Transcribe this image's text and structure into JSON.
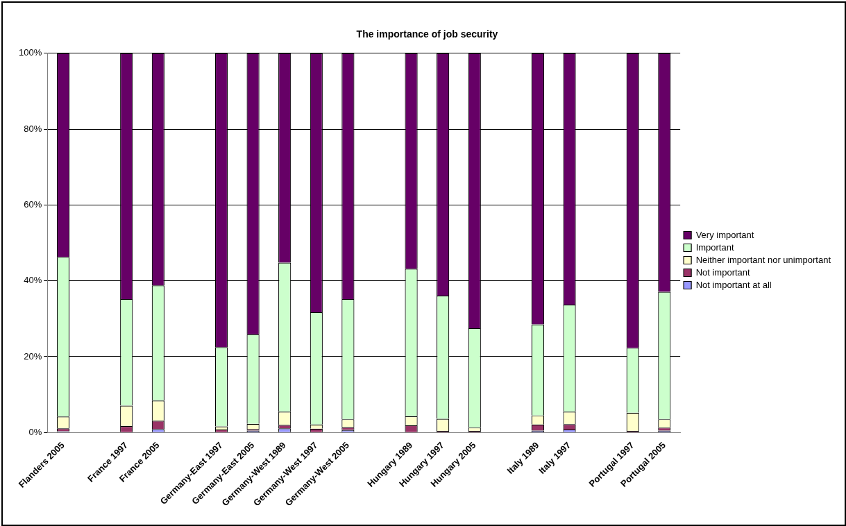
{
  "chart_data": {
    "type": "bar",
    "title": "The importance of job security",
    "stacked": true,
    "categories": [
      "Flanders 2005",
      null,
      "France 1997",
      "France 2005",
      null,
      "Germany-East 1997",
      "Germany-East 2005",
      "Germany-West 1989",
      "Germany-West 1997",
      "Germany-West 2005",
      null,
      "Hungary 1989",
      "Hungary 1997",
      "Hungary 2005",
      null,
      "Italy 1989",
      "Italy 1997",
      null,
      "Portugal 1997",
      "Portugal 2005"
    ],
    "series": [
      {
        "name": "Not important at all",
        "color": "#9999ff",
        "values": [
          0.3,
          null,
          0,
          0.9,
          null,
          0,
          0.5,
          1.1,
          0,
          0.7,
          null,
          0,
          0,
          0,
          null,
          0.5,
          0.8,
          null,
          0,
          0.5
        ]
      },
      {
        "name": "Not important",
        "color": "#993366",
        "values": [
          0.8,
          null,
          1.7,
          2.2,
          null,
          0.8,
          0.4,
          0.9,
          1.0,
          0.7,
          null,
          1.9,
          0.4,
          0.4,
          null,
          1.6,
          1.4,
          null,
          0.4,
          0.8
        ]
      },
      {
        "name": "Neither important nor unimportant",
        "color": "#ffffcc",
        "values": [
          3.1,
          null,
          5.4,
          5.3,
          null,
          0.8,
          1.4,
          3.5,
          1.1,
          2.1,
          null,
          2.4,
          3.2,
          0.9,
          null,
          2.4,
          3.3,
          null,
          4.8,
          2.2
        ]
      },
      {
        "name": "Important",
        "color": "#ccffcc",
        "values": [
          42.1,
          null,
          28.1,
          30.4,
          null,
          20.9,
          23.6,
          39.3,
          29.6,
          31.7,
          null,
          38.9,
          32.5,
          26.2,
          null,
          24.0,
          28.2,
          null,
          17.1,
          33.6
        ]
      },
      {
        "name": "Very important",
        "color": "#660066",
        "values": [
          53.7,
          null,
          64.8,
          61.2,
          null,
          77.5,
          74.1,
          55.2,
          68.3,
          64.8,
          null,
          56.8,
          63.9,
          72.5,
          null,
          71.5,
          66.3,
          null,
          77.7,
          62.9
        ]
      }
    ],
    "ylim": [
      0,
      100
    ],
    "yticks": [
      {
        "value": 0,
        "label": "0%"
      },
      {
        "value": 20,
        "label": "20%"
      },
      {
        "value": 40,
        "label": "40%"
      },
      {
        "value": 60,
        "label": "60%"
      },
      {
        "value": 80,
        "label": "80%"
      },
      {
        "value": 100,
        "label": "100%"
      }
    ],
    "grid": "y",
    "legend": "right"
  }
}
